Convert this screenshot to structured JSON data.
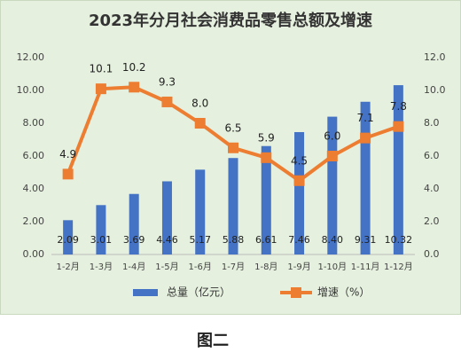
{
  "chart_data": {
    "type": "bar",
    "title": "2023年分月社会消费品零售总额及增速",
    "caption": "图二",
    "categories": [
      "1-2月",
      "1-3月",
      "1-4月",
      "1-5月",
      "1-6月",
      "1-7月",
      "1-8月",
      "1-9月",
      "1-10月",
      "1-11月",
      "1-12月"
    ],
    "series": [
      {
        "name": "总量（亿元）",
        "type": "bar",
        "color": "#4472c4",
        "values": [
          2.09,
          3.01,
          3.69,
          4.46,
          5.17,
          5.88,
          6.61,
          7.46,
          8.4,
          9.31,
          10.32
        ],
        "value_labels": [
          "2.09",
          "3.01",
          "3.69",
          "4.46",
          "5.17",
          "5.88",
          "6.61",
          "7.46",
          "8.40",
          "9.31",
          "10.32"
        ]
      },
      {
        "name": "增速（%）",
        "type": "line",
        "axis": "y2",
        "color": "#ed7d31",
        "values": [
          4.9,
          10.1,
          10.2,
          9.3,
          8.0,
          6.5,
          5.9,
          4.5,
          6.0,
          7.1,
          7.8
        ],
        "value_labels": [
          "4.9",
          "10.1",
          "10.2",
          "9.3",
          "8.0",
          "6.5",
          "5.9",
          "4.5",
          "6.0",
          "7.1",
          "7.8"
        ]
      }
    ],
    "ylim": [
      0,
      12
    ],
    "yticks": [
      {
        "value": 0,
        "label": "0.00"
      },
      {
        "value": 2,
        "label": "2.00"
      },
      {
        "value": 4,
        "label": "4.00"
      },
      {
        "value": 6,
        "label": "6.00"
      },
      {
        "value": 8,
        "label": "8.00"
      },
      {
        "value": 10,
        "label": "10.00"
      },
      {
        "value": 12,
        "label": "12.00"
      }
    ],
    "y2lim": [
      0,
      12
    ],
    "y2ticks": [
      {
        "value": 0,
        "label": "0.0"
      },
      {
        "value": 2,
        "label": "2.0"
      },
      {
        "value": 4,
        "label": "4.0"
      },
      {
        "value": 6,
        "label": "6.0"
      },
      {
        "value": 8,
        "label": "8.0"
      },
      {
        "value": 10,
        "label": "10.0"
      },
      {
        "value": 12,
        "label": "12.0"
      }
    ],
    "grid": false,
    "legend": "bottom"
  }
}
